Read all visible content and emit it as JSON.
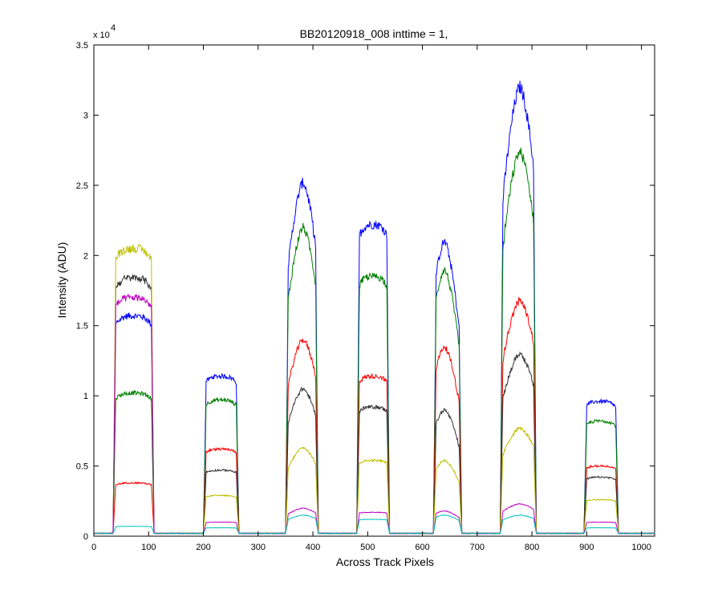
{
  "chart_data": {
    "type": "line",
    "title": "BB20120918_008 inttime = 1,",
    "xlabel": "Across Track Pixels",
    "ylabel": "Intensity (ADU)",
    "y_multiplier_label": "x 10",
    "y_multiplier_exponent": "4",
    "xlim": [
      0,
      1024
    ],
    "ylim": [
      0,
      3.5
    ],
    "y_units_scale": 10000,
    "grid": false,
    "legend": "none",
    "x_ticks": [
      0,
      100,
      200,
      300,
      400,
      500,
      600,
      700,
      800,
      900,
      1000
    ],
    "y_ticks": [
      0,
      0.5,
      1,
      1.5,
      2,
      2.5,
      3,
      3.5
    ],
    "x_tick_labels": [
      "0",
      "100",
      "200",
      "300",
      "400",
      "500",
      "600",
      "700",
      "800",
      "900",
      "1000"
    ],
    "y_tick_labels": [
      "0",
      "0.5",
      "1",
      "1.5",
      "2",
      "2.5",
      "3",
      "3.5"
    ],
    "baseline": 0.02,
    "bands": [
      {
        "start": 35,
        "end": 110,
        "peak_x": 72,
        "shape": "flat"
      },
      {
        "start": 200,
        "end": 265,
        "peak_x": 232,
        "shape": "flat"
      },
      {
        "start": 350,
        "end": 410,
        "peak_x": 382,
        "shape": "peak"
      },
      {
        "start": 480,
        "end": 540,
        "peak_x": 510,
        "shape": "flat"
      },
      {
        "start": 620,
        "end": 672,
        "peak_x": 640,
        "shape": "peak"
      },
      {
        "start": 742,
        "end": 808,
        "peak_x": 778,
        "shape": "peak"
      },
      {
        "start": 895,
        "end": 958,
        "peak_x": 925,
        "shape": "flat"
      }
    ],
    "series": [
      {
        "color": "#0000ff",
        "band_levels": [
          1.55,
          1.12,
          2.5,
          2.2,
          2.08,
          3.18,
          0.94
        ]
      },
      {
        "color": "#008000",
        "band_levels": [
          1.0,
          0.95,
          2.18,
          1.83,
          1.88,
          2.72,
          0.8
        ]
      },
      {
        "color": "#ff0000",
        "band_levels": [
          0.36,
          0.6,
          1.38,
          1.12,
          1.33,
          1.66,
          0.48
        ]
      },
      {
        "color": "#333333",
        "band_levels": [
          1.82,
          0.45,
          1.03,
          0.9,
          0.88,
          1.28,
          0.4
        ]
      },
      {
        "color": "#bfbf00",
        "band_levels": [
          2.03,
          0.27,
          0.61,
          0.52,
          0.52,
          0.75,
          0.24
        ]
      },
      {
        "color": "#bf00bf",
        "band_levels": [
          1.68,
          0.08,
          0.18,
          0.15,
          0.16,
          0.21,
          0.08
        ]
      },
      {
        "color": "#00bfbf",
        "band_levels": [
          0.05,
          0.04,
          0.13,
          0.1,
          0.13,
          0.13,
          0.04
        ]
      }
    ]
  }
}
